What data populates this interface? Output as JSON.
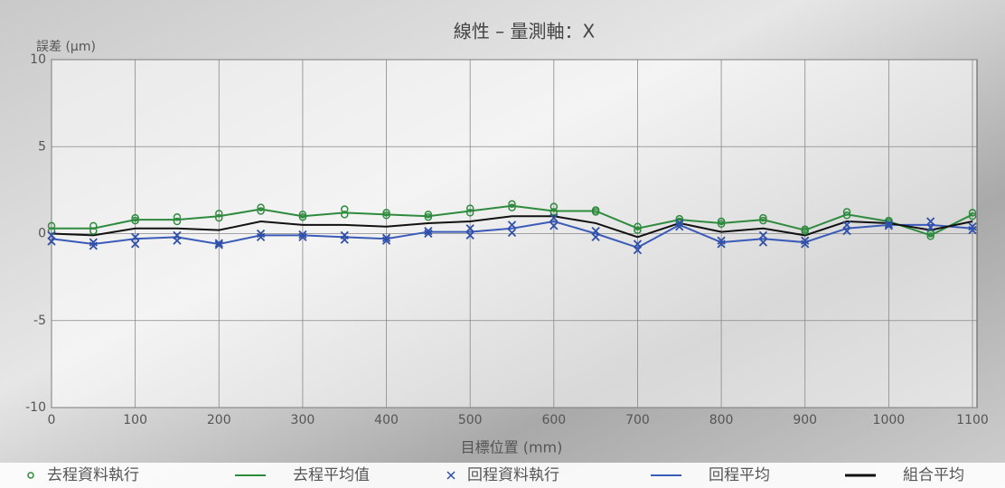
{
  "chart_data": {
    "type": "line",
    "title": "線性 – 量測軸：X",
    "y_label": "誤差 (µm)",
    "x_label": "目標位置 (mm)",
    "x": [
      0,
      50,
      100,
      150,
      200,
      250,
      300,
      350,
      400,
      450,
      500,
      550,
      600,
      650,
      700,
      750,
      800,
      850,
      900,
      950,
      1000,
      1050,
      1100
    ],
    "xlim": [
      0,
      1100
    ],
    "xticks": [
      0,
      100,
      200,
      300,
      400,
      500,
      600,
      700,
      800,
      900,
      1000,
      1100
    ],
    "ylim": [
      -10,
      10
    ],
    "yticks": [
      -10,
      -5,
      0,
      5,
      10
    ],
    "grid": true,
    "legend": "bottom",
    "series": [
      {
        "name": "去程資料執行",
        "type": "scatter",
        "marker": "o",
        "color": "#2e8b3e",
        "runs": [
          [
            0.45,
            0.45,
            0.9,
            0.95,
            1.15,
            1.5,
            1.1,
            1.4,
            1.2,
            1.1,
            1.45,
            1.7,
            1.55,
            1.35,
            0.4,
            0.85,
            0.7,
            0.9,
            0.25,
            1.25,
            0.75,
            0.0,
            1.2
          ],
          [
            0.15,
            0.15,
            0.75,
            0.7,
            0.9,
            1.3,
            0.95,
            1.1,
            1.05,
            0.95,
            1.2,
            1.5,
            1.25,
            1.25,
            0.2,
            0.7,
            0.55,
            0.75,
            0.15,
            1.05,
            0.65,
            -0.15,
            1.0
          ]
        ]
      },
      {
        "name": "去程平均值",
        "type": "line",
        "color": "#2e8b3e",
        "values": [
          0.3,
          0.3,
          0.8,
          0.8,
          1.0,
          1.4,
          1.0,
          1.2,
          1.1,
          1.0,
          1.3,
          1.6,
          1.3,
          1.3,
          0.3,
          0.8,
          0.6,
          0.8,
          0.2,
          1.1,
          0.7,
          -0.1,
          1.1
        ]
      },
      {
        "name": "回程資料執行",
        "type": "scatter",
        "marker": "x",
        "color": "#2f4fa8",
        "runs": [
          [
            -0.1,
            -0.5,
            -0.2,
            -0.1,
            -0.55,
            0.0,
            -0.05,
            -0.1,
            -0.25,
            0.15,
            0.3,
            0.5,
            0.9,
            0.15,
            -0.6,
            0.6,
            -0.4,
            -0.1,
            -0.4,
            0.5,
            0.55,
            0.7,
            0.4
          ],
          [
            -0.45,
            -0.7,
            -0.6,
            -0.4,
            -0.65,
            -0.2,
            -0.2,
            -0.35,
            -0.4,
            0.0,
            -0.1,
            0.05,
            0.45,
            -0.2,
            -0.95,
            0.4,
            -0.6,
            -0.5,
            -0.6,
            0.15,
            0.45,
            0.35,
            0.2
          ]
        ]
      },
      {
        "name": "回程平均",
        "type": "line",
        "color": "#3a5bb8",
        "values": [
          -0.3,
          -0.6,
          -0.3,
          -0.2,
          -0.6,
          -0.1,
          -0.1,
          -0.2,
          -0.3,
          0.1,
          0.1,
          0.3,
          0.7,
          0.0,
          -0.8,
          0.5,
          -0.5,
          -0.3,
          -0.5,
          0.3,
          0.5,
          0.5,
          0.3
        ]
      },
      {
        "name": "組合平均",
        "type": "line",
        "color": "#111111",
        "values": [
          0.0,
          -0.1,
          0.3,
          0.3,
          0.2,
          0.7,
          0.5,
          0.5,
          0.4,
          0.6,
          0.7,
          1.0,
          1.0,
          0.6,
          -0.2,
          0.6,
          0.1,
          0.3,
          -0.1,
          0.7,
          0.6,
          0.2,
          0.7
        ]
      }
    ]
  }
}
